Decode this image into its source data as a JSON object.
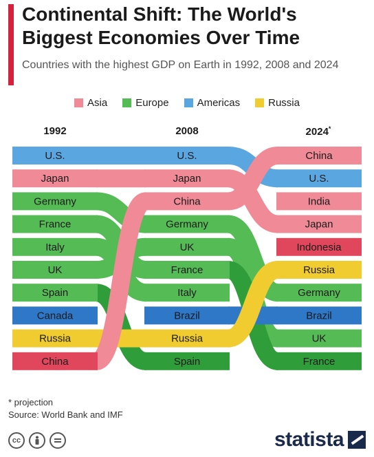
{
  "header": {
    "title": "Continental Shift: The World's Biggest Economies Over Time",
    "subtitle": "Countries with the highest GDP on Earth in 1992, 2008 and 2024"
  },
  "legend": [
    {
      "label": "Asia",
      "color": "#f08a96"
    },
    {
      "label": "Europe",
      "color": "#55bb55"
    },
    {
      "label": "Americas",
      "color": "#5aa6e0"
    },
    {
      "label": "Russia",
      "color": "#f0cc30"
    }
  ],
  "chart_data": {
    "type": "bump",
    "years": [
      "1992",
      "2008",
      "2024"
    ],
    "year_marker": "*",
    "columns": [
      [
        "U.S.",
        "Japan",
        "Germany",
        "France",
        "Italy",
        "UK",
        "Spain",
        "Canada",
        "Russia",
        "China"
      ],
      [
        "U.S.",
        "Japan",
        "China",
        "Germany",
        "UK",
        "France",
        "Italy",
        "Brazil",
        "Russia",
        "Spain"
      ],
      [
        "China",
        "U.S.",
        "India",
        "Japan",
        "Indonesia",
        "Russia",
        "Germany",
        "Brazil",
        "UK",
        "France"
      ]
    ],
    "regions": {
      "U.S.": "Americas",
      "Canada": "Americas",
      "Brazil": "Americas",
      "Japan": "Asia",
      "China": "Asia",
      "India": "Asia",
      "Indonesia": "Asia",
      "Germany": "Europe",
      "France": "Europe",
      "Italy": "Europe",
      "UK": "Europe",
      "Spain": "Europe",
      "Russia": "Russia"
    },
    "region_colors": {
      "Asia": "#f08a96",
      "Europe": "#55bb55",
      "Americas": "#5aa6e0",
      "Russia": "#f0cc30"
    },
    "dark_region_colors": {
      "Asia": "#e0465c",
      "Europe": "#2f9e3a",
      "Americas": "#2f78c8",
      "Russia": "#e9c210"
    }
  },
  "footnote": {
    "projection": "* projection",
    "source": "Source: World Bank and IMF"
  },
  "license_icons": [
    "cc-icon",
    "by-icon",
    "nd-icon"
  ],
  "brand": "statista"
}
